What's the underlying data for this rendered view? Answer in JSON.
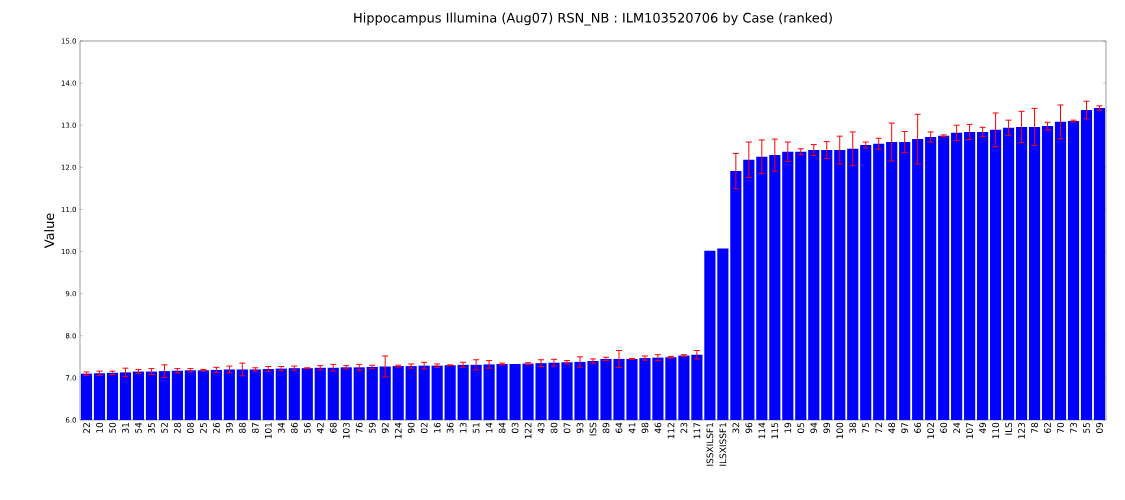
{
  "chart_data": {
    "type": "bar",
    "title": "Hippocampus Illumina (Aug07) RSN_NB : ILM103520706 by Case (ranked)",
    "ylabel": "Value",
    "categories": [
      "22",
      "10",
      "50",
      "31",
      "54",
      "35",
      "52",
      "28",
      "08",
      "25",
      "26",
      "39",
      "88",
      "87",
      "101",
      "34",
      "86",
      "56",
      "42",
      "68",
      "103",
      "76",
      "59",
      "92",
      "124",
      "90",
      "02",
      "16",
      "36",
      "13",
      "51",
      "14",
      "84",
      "03",
      "122",
      "43",
      "80",
      "07",
      "93",
      "ISS",
      "89",
      "64",
      "41",
      "98",
      "46",
      "112",
      "23",
      "117",
      "ISSXILSF1",
      "ILSXISSF1",
      "32",
      "96",
      "114",
      "115",
      "19",
      "05",
      "94",
      "99",
      "100",
      "38",
      "75",
      "72",
      "48",
      "97",
      "66",
      "102",
      "60",
      "24",
      "107",
      "49",
      "110",
      "ILS",
      "123",
      "78",
      "62",
      "70",
      "73",
      "55",
      "09"
    ],
    "values": [
      7.1,
      7.11,
      7.12,
      7.13,
      7.15,
      7.15,
      7.16,
      7.17,
      7.18,
      7.18,
      7.19,
      7.2,
      7.2,
      7.2,
      7.21,
      7.22,
      7.23,
      7.23,
      7.24,
      7.24,
      7.25,
      7.25,
      7.26,
      7.27,
      7.28,
      7.28,
      7.29,
      7.29,
      7.3,
      7.31,
      7.31,
      7.32,
      7.33,
      7.33,
      7.34,
      7.35,
      7.36,
      7.37,
      7.38,
      7.4,
      7.45,
      7.45,
      7.45,
      7.47,
      7.48,
      7.49,
      7.53,
      7.55,
      10.02,
      10.07,
      11.91,
      12.18,
      12.25,
      12.29,
      12.37,
      12.37,
      12.41,
      12.41,
      12.41,
      12.44,
      12.53,
      12.56,
      12.6,
      12.6,
      12.67,
      12.72,
      12.75,
      12.82,
      12.84,
      12.84,
      12.89,
      12.94,
      12.96,
      12.96,
      12.98,
      13.08,
      13.1,
      13.36,
      13.41
    ],
    "errors": [
      0.04,
      0.05,
      0.04,
      0.1,
      0.05,
      0.07,
      0.15,
      0.05,
      0.04,
      0.02,
      0.06,
      0.08,
      0.15,
      0.04,
      0.06,
      0.05,
      0.05,
      0.01,
      0.05,
      0.08,
      0.04,
      0.07,
      0.04,
      0.25,
      0.02,
      0.05,
      0.08,
      0.04,
      0.01,
      0.06,
      0.12,
      0.09,
      0.02,
      null,
      0.02,
      0.08,
      0.08,
      0.04,
      0.12,
      0.05,
      0.04,
      0.2,
      0.01,
      0.05,
      0.07,
      0.02,
      0.02,
      0.1,
      null,
      null,
      0.42,
      0.42,
      0.4,
      0.38,
      0.23,
      0.07,
      0.13,
      0.2,
      0.33,
      0.4,
      0.07,
      0.13,
      0.45,
      0.25,
      0.59,
      0.12,
      0.02,
      0.18,
      0.18,
      0.11,
      0.4,
      0.18,
      0.37,
      0.44,
      0.09,
      0.4,
      0.02,
      0.21,
      0.05
    ],
    "color": "#0000ff",
    "ylim": [
      6,
      15
    ],
    "yticks": [
      {
        "value": 6,
        "label": "6.0"
      },
      {
        "value": 7,
        "label": "7.0"
      },
      {
        "value": 8,
        "label": "8.0"
      },
      {
        "value": 9,
        "label": "9.0"
      },
      {
        "value": 10,
        "label": "10.0"
      },
      {
        "value": 11,
        "label": "11.0"
      },
      {
        "value": 12,
        "label": "12.0"
      },
      {
        "value": 13,
        "label": "13.0"
      },
      {
        "value": 14,
        "label": "14.0"
      },
      {
        "value": 15,
        "label": "15.0"
      }
    ]
  }
}
